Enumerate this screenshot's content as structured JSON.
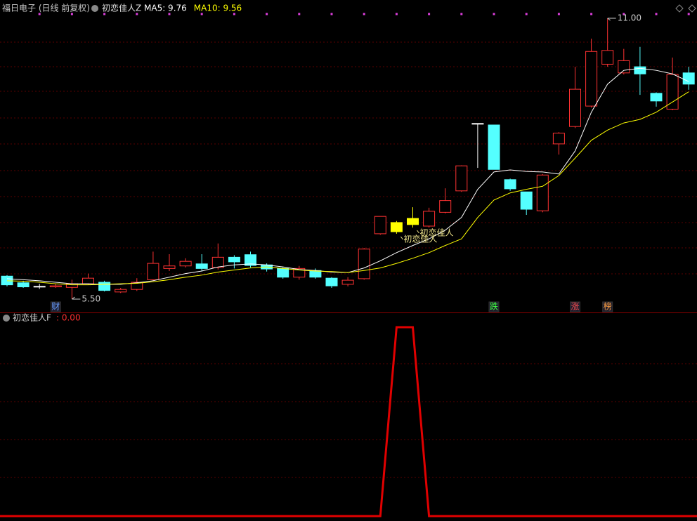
{
  "chart_data": [
    {
      "type": "candlestick",
      "title": "福日电子 (日线 前复权)",
      "indicator": "初恋佳人Z",
      "open": [
        5.95,
        5.82,
        5.75,
        5.74,
        5.73,
        5.8,
        5.83,
        5.64,
        5.69,
        5.88,
        6.1,
        6.15,
        6.19,
        6.12,
        6.32,
        6.37,
        6.17,
        6.1,
        5.93,
        6.06,
        5.91,
        5.79,
        5.9,
        6.78,
        7.0,
        6.96,
        6.93,
        7.2,
        7.62,
        8.94,
        8.91,
        7.84,
        7.6,
        7.23,
        8.54,
        8.88,
        9.28,
        10.1,
        9.93,
        10.05,
        9.53,
        9.22,
        9.93
      ],
      "high": [
        5.97,
        5.86,
        5.8,
        5.8,
        5.88,
        6.0,
        5.86,
        5.72,
        5.91,
        6.43,
        6.38,
        6.3,
        6.38,
        6.59,
        6.36,
        6.43,
        6.2,
        6.12,
        6.15,
        6.1,
        5.93,
        5.93,
        6.5,
        7.12,
        7.03,
        7.3,
        7.29,
        7.67,
        8.12,
        8.94,
        8.91,
        7.86,
        7.6,
        7.95,
        8.77,
        10.05,
        10.6,
        11.0,
        10.4,
        10.44,
        9.55,
        10.23,
        10.05
      ],
      "low": [
        5.75,
        5.72,
        5.7,
        5.72,
        5.5,
        5.78,
        5.65,
        5.62,
        5.66,
        5.86,
        6.05,
        6.12,
        6.05,
        6.08,
        6.1,
        6.12,
        6.04,
        5.9,
        5.88,
        5.9,
        5.72,
        5.75,
        5.88,
        6.76,
        6.78,
        6.9,
        6.9,
        7.18,
        7.6,
        8.07,
        8.04,
        7.62,
        7.15,
        7.2,
        8.33,
        8.85,
        9.25,
        10.05,
        9.9,
        9.5,
        9.27,
        9.2,
        9.6
      ],
      "close": [
        5.78,
        5.74,
        5.75,
        5.76,
        5.8,
        5.91,
        5.67,
        5.69,
        5.83,
        6.2,
        6.15,
        6.24,
        6.1,
        6.32,
        6.23,
        6.16,
        6.09,
        5.93,
        6.1,
        5.93,
        5.76,
        5.87,
        6.48,
        7.12,
        6.82,
        7.08,
        7.22,
        7.43,
        8.11,
        8.94,
        8.04,
        7.66,
        7.26,
        7.93,
        8.75,
        9.61,
        10.35,
        10.37,
        10.17,
        9.91,
        9.38,
        9.9,
        9.71
      ],
      "up_color": "#ff3232",
      "down_color": "#54ffff",
      "flat_color": "#ffffff",
      "highlight": [
        24,
        25
      ],
      "highlight_color": "#ffff00",
      "min_label": "5.50",
      "max_label": "11.00",
      "ylim": [
        5.5,
        11.0
      ],
      "series": [
        {
          "name": "MA5: 9.76",
          "color": "#ffffff",
          "values": [
            5.9,
            5.88,
            5.86,
            5.83,
            5.8,
            5.8,
            5.79,
            5.79,
            5.82,
            5.86,
            5.93,
            6.0,
            6.05,
            6.13,
            6.17,
            6.19,
            6.17,
            6.13,
            6.08,
            6.06,
            6.03,
            6.02,
            6.11,
            6.25,
            6.41,
            6.55,
            6.68,
            6.85,
            7.1,
            7.65,
            7.99,
            8.03,
            8.0,
            7.99,
            7.95,
            8.4,
            9.16,
            9.71,
            9.98,
            10.02,
            9.98,
            9.91,
            9.76
          ]
        },
        {
          "name": "MA10: 9.56",
          "color": "#ffff00",
          "values": [
            5.86,
            5.85,
            5.83,
            5.8,
            5.78,
            5.78,
            5.79,
            5.8,
            5.81,
            5.84,
            5.88,
            5.93,
            5.97,
            6.03,
            6.07,
            6.11,
            6.13,
            6.1,
            6.07,
            6.05,
            6.04,
            6.02,
            6.06,
            6.11,
            6.2,
            6.3,
            6.41,
            6.55,
            6.68,
            7.1,
            7.44,
            7.58,
            7.65,
            7.71,
            7.92,
            8.26,
            8.61,
            8.81,
            8.95,
            9.02,
            9.16,
            9.36,
            9.56
          ]
        }
      ],
      "signals": [
        {
          "index": 24,
          "label": "初恋佳人"
        },
        {
          "index": 25,
          "label": "初恋佳人"
        }
      ],
      "events": [
        {
          "index": 3,
          "label": "财",
          "color": "#6aa0ff"
        },
        {
          "index": 30,
          "label": "跌",
          "color": "#40ff40"
        },
        {
          "index": 35,
          "label": "涨",
          "color": "#ff5050"
        },
        {
          "index": 37,
          "label": "榜",
          "color": "#ffa040"
        }
      ]
    },
    {
      "type": "line",
      "title": "初恋佳人F",
      "current_label": ": 0.00",
      "color": "#e00000",
      "ylim": [
        0,
        1
      ],
      "values": [
        0,
        0,
        0,
        0,
        0,
        0,
        0,
        0,
        0,
        0,
        0,
        0,
        0,
        0,
        0,
        0,
        0,
        0,
        0,
        0,
        0,
        0,
        0,
        0,
        1,
        1,
        0,
        0,
        0,
        0,
        0,
        0,
        0,
        0,
        0,
        0,
        0,
        0,
        0,
        0,
        0,
        0,
        0
      ]
    }
  ]
}
